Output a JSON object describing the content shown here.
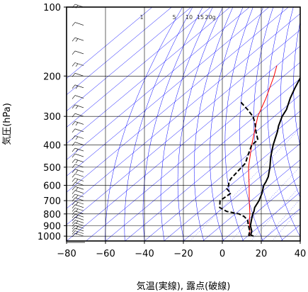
{
  "chart_data": {
    "type": "line",
    "diagram": "skew-T log-p",
    "xlabel": "気温(実線), 露点(破線)",
    "ylabel": "気圧(hPa)",
    "xlim": [
      -80,
      40
    ],
    "ylim": [
      1050,
      100
    ],
    "yscale": "log",
    "grid": true,
    "x_ticks": [
      "−80",
      "−60",
      "−40",
      "−20",
      "0",
      "20",
      "40"
    ],
    "x_tick_values": [
      -80,
      -60,
      -40,
      -20,
      0,
      20,
      40
    ],
    "y_ticks": [
      "100",
      "200",
      "300",
      "400",
      "500",
      "600",
      "700",
      "800",
      "900",
      "1000"
    ],
    "y_tick_values": [
      100,
      200,
      300,
      400,
      500,
      600,
      700,
      800,
      900,
      1000
    ],
    "mixing_ratio_labels": [
      "1",
      "5",
      "10",
      "15",
      "20g"
    ],
    "mixing_ratio_values": [
      1,
      5,
      10,
      15,
      20
    ],
    "colors": {
      "temperature": "#000000",
      "dewpoint": "#000000",
      "parcel": "#ff0000",
      "isotherm_adiabat": "#0000ff",
      "grid": "#000000"
    },
    "series": [
      {
        "name": "気温",
        "style": "solid",
        "points": [
          {
            "p": 1000,
            "t": 13
          },
          {
            "p": 990,
            "t": 11
          },
          {
            "p": 970,
            "t": 10
          },
          {
            "p": 950,
            "t": 9
          },
          {
            "p": 925,
            "t": 7
          },
          {
            "p": 900,
            "t": 5
          },
          {
            "p": 850,
            "t": 2
          },
          {
            "p": 800,
            "t": -1
          },
          {
            "p": 780,
            "t": -2
          },
          {
            "p": 750,
            "t": -4
          },
          {
            "p": 700,
            "t": -6
          },
          {
            "p": 650,
            "t": -9
          },
          {
            "p": 600,
            "t": -13
          },
          {
            "p": 580,
            "t": -14
          },
          {
            "p": 550,
            "t": -16
          },
          {
            "p": 500,
            "t": -21
          },
          {
            "p": 450,
            "t": -27
          },
          {
            "p": 400,
            "t": -33
          },
          {
            "p": 350,
            "t": -39
          },
          {
            "p": 330,
            "t": -42
          },
          {
            "p": 300,
            "t": -46
          },
          {
            "p": 280,
            "t": -48
          },
          {
            "p": 250,
            "t": -53
          },
          {
            "p": 225,
            "t": -57
          },
          {
            "p": 200,
            "t": -61
          },
          {
            "p": 175,
            "t": -64
          },
          {
            "p": 150,
            "t": -68
          },
          {
            "p": 130,
            "t": -74
          },
          {
            "p": 120,
            "t": -75
          },
          {
            "p": 110,
            "t": -75
          },
          {
            "p": 105,
            "t": -73
          },
          {
            "p": 100,
            "t": -73
          }
        ]
      },
      {
        "name": "露点",
        "style": "dashed",
        "points": [
          {
            "p": 1000,
            "t": 11
          },
          {
            "p": 990,
            "t": 10
          },
          {
            "p": 970,
            "t": 9
          },
          {
            "p": 950,
            "t": 8
          },
          {
            "p": 925,
            "t": 6
          },
          {
            "p": 900,
            "t": 4
          },
          {
            "p": 850,
            "t": 0
          },
          {
            "p": 820,
            "t": -4
          },
          {
            "p": 800,
            "t": -8
          },
          {
            "p": 780,
            "t": -16
          },
          {
            "p": 750,
            "t": -22
          },
          {
            "p": 700,
            "t": -26
          },
          {
            "p": 650,
            "t": -25
          },
          {
            "p": 620,
            "t": -30
          },
          {
            "p": 600,
            "t": -31
          },
          {
            "p": 580,
            "t": -33
          },
          {
            "p": 560,
            "t": -34
          },
          {
            "p": 520,
            "t": -35
          },
          {
            "p": 480,
            "t": -36
          },
          {
            "p": 450,
            "t": -39
          },
          {
            "p": 400,
            "t": -44
          },
          {
            "p": 380,
            "t": -44
          },
          {
            "p": 350,
            "t": -50
          },
          {
            "p": 320,
            "t": -56
          },
          {
            "p": 300,
            "t": -61
          },
          {
            "p": 280,
            "t": -68
          },
          {
            "p": 260,
            "t": -76
          }
        ]
      }
    ],
    "parcel_path": {
      "points": [
        {
          "p": 1000,
          "t": 11
        },
        {
          "p": 950,
          "t": 8
        },
        {
          "p": 900,
          "t": 4.5
        },
        {
          "p": 850,
          "t": 1
        },
        {
          "p": 800,
          "t": -2.5
        },
        {
          "p": 700,
          "t": -11
        },
        {
          "p": 600,
          "t": -20.5
        },
        {
          "p": 500,
          "t": -32
        },
        {
          "p": 400,
          "t": -44
        },
        {
          "p": 300,
          "t": -58.5
        },
        {
          "p": 250,
          "t": -65.5
        },
        {
          "p": 200,
          "t": -75
        },
        {
          "p": 180,
          "t": -80
        }
      ]
    },
    "wind_barbs": {
      "levels": [
        100,
        120,
        140,
        160,
        180,
        200,
        225,
        250,
        275,
        300,
        325,
        350,
        375,
        400,
        425,
        450,
        475,
        500,
        525,
        550,
        575,
        600,
        625,
        650,
        675,
        700,
        725,
        750,
        775,
        800,
        825,
        850,
        875,
        900,
        925,
        950,
        975,
        1000
      ]
    }
  }
}
